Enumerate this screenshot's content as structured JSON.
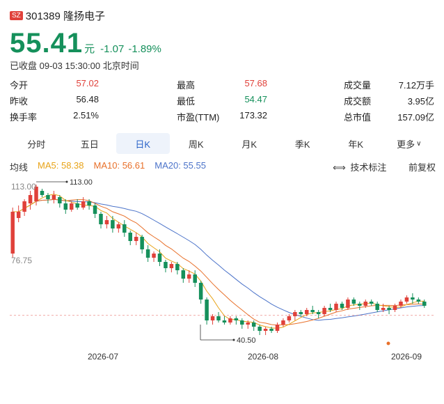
{
  "header": {
    "exchange": "SZ",
    "code_name": "301389 隆扬电子"
  },
  "quote": {
    "price": "55.41",
    "unit": "元",
    "change": "-1.07",
    "change_pct": "-1.89%",
    "status": "已收盘 09-03 15:30:00 北京时间"
  },
  "stats": [
    [
      {
        "label": "今开",
        "value": "57.02",
        "dir": "up"
      },
      {
        "label": "最高",
        "value": "57.68",
        "dir": "up"
      },
      {
        "label": "成交量",
        "value": "7.12万手",
        "dir": ""
      }
    ],
    [
      {
        "label": "昨收",
        "value": "56.48",
        "dir": ""
      },
      {
        "label": "最低",
        "value": "54.47",
        "dir": "down"
      },
      {
        "label": "成交额",
        "value": "3.95亿",
        "dir": ""
      }
    ],
    [
      {
        "label": "换手率",
        "value": "2.51%",
        "dir": ""
      },
      {
        "label": "市盈(TTM)",
        "value": "173.32",
        "dir": ""
      },
      {
        "label": "总市值",
        "value": "157.09亿",
        "dir": ""
      }
    ]
  ],
  "tabs": [
    "分时",
    "五日",
    "日K",
    "周K",
    "月K",
    "季K",
    "年K",
    "更多"
  ],
  "active_tab": 2,
  "ma": {
    "label": "均线",
    "ma5": "MA5: 58.38",
    "ma10": "MA10: 56.61",
    "ma20": "MA20: 55.55",
    "tech": "技术标注",
    "adjust": "前复权"
  },
  "colors": {
    "up": "#e0413a",
    "down": "#15905b",
    "ma5": "#e8a317",
    "ma10": "#e8702a",
    "ma20": "#4b73c9"
  },
  "chart_data": {
    "type": "candlestick",
    "y_max_label": "113.00",
    "y_min_label": "76.75",
    "high_marker": "113.00",
    "low_marker": "40.50",
    "x_labels": [
      "2026-07",
      "2026-08",
      "2026-09"
    ],
    "ylim": [
      36,
      116
    ],
    "candles": [
      [
        80,
        100,
        78,
        102
      ],
      [
        97,
        100,
        95,
        103
      ],
      [
        100,
        105,
        98,
        106
      ],
      [
        104,
        108,
        101,
        110
      ],
      [
        105,
        112,
        103,
        113
      ],
      [
        110,
        108,
        107,
        111
      ],
      [
        108,
        106,
        104,
        109
      ],
      [
        106,
        108,
        104,
        110
      ],
      [
        107,
        104,
        102,
        108
      ],
      [
        104,
        101,
        99,
        106
      ],
      [
        101,
        104,
        100,
        105
      ],
      [
        104,
        102,
        101,
        106
      ],
      [
        102,
        105,
        101,
        107
      ],
      [
        105,
        103,
        101,
        106
      ],
      [
        103,
        99,
        97,
        104
      ],
      [
        99,
        94,
        92,
        100
      ],
      [
        94,
        96,
        92,
        98
      ],
      [
        96,
        92,
        90,
        98
      ],
      [
        92,
        94,
        90,
        95
      ],
      [
        94,
        90,
        88,
        96
      ],
      [
        90,
        86,
        84,
        91
      ],
      [
        86,
        88,
        84,
        90
      ],
      [
        88,
        82,
        80,
        89
      ],
      [
        82,
        78,
        76,
        84
      ],
      [
        78,
        80,
        76,
        81
      ],
      [
        80,
        76,
        74,
        82
      ],
      [
        76,
        73,
        71,
        77
      ],
      [
        73,
        75,
        71,
        76
      ],
      [
        75,
        72,
        70,
        76
      ],
      [
        72,
        68,
        66,
        73
      ],
      [
        68,
        70,
        66,
        72
      ],
      [
        70,
        66,
        64,
        72
      ],
      [
        66,
        58,
        56,
        67
      ],
      [
        58,
        48,
        46,
        59
      ],
      [
        48,
        50,
        46,
        51
      ],
      [
        50,
        48,
        47,
        52
      ],
      [
        48,
        47,
        46,
        50
      ],
      [
        47,
        49,
        46,
        50
      ],
      [
        49,
        48,
        46,
        50
      ],
      [
        48,
        46,
        44,
        49
      ],
      [
        46,
        47,
        44,
        48
      ],
      [
        47,
        45,
        43,
        48
      ],
      [
        45,
        43,
        41,
        46
      ],
      [
        43,
        44,
        41,
        45
      ],
      [
        44,
        43,
        42,
        45
      ],
      [
        43,
        46,
        42,
        47
      ],
      [
        46,
        48,
        45,
        49
      ],
      [
        48,
        50,
        47,
        51
      ],
      [
        50,
        52,
        48,
        53
      ],
      [
        52,
        51,
        50,
        53
      ],
      [
        51,
        53,
        50,
        54
      ],
      [
        53,
        52,
        51,
        55
      ],
      [
        52,
        51,
        49,
        53
      ],
      [
        51,
        54,
        50,
        55
      ],
      [
        54,
        53,
        52,
        56
      ],
      [
        53,
        56,
        52,
        57
      ],
      [
        56,
        54,
        53,
        57
      ],
      [
        54,
        58,
        53,
        59
      ],
      [
        58,
        56,
        55,
        59
      ],
      [
        56,
        55,
        53,
        57
      ],
      [
        55,
        57,
        54,
        58
      ],
      [
        57,
        56,
        55,
        58
      ],
      [
        56,
        53,
        52,
        57
      ],
      [
        53,
        54,
        52,
        56
      ],
      [
        54,
        53,
        51,
        55
      ],
      [
        53,
        55,
        52,
        56
      ],
      [
        55,
        57,
        54,
        58
      ],
      [
        57,
        59,
        56,
        60
      ],
      [
        59,
        58,
        56,
        61
      ],
      [
        58,
        57,
        56,
        59
      ],
      [
        57,
        55,
        54,
        58
      ]
    ]
  }
}
